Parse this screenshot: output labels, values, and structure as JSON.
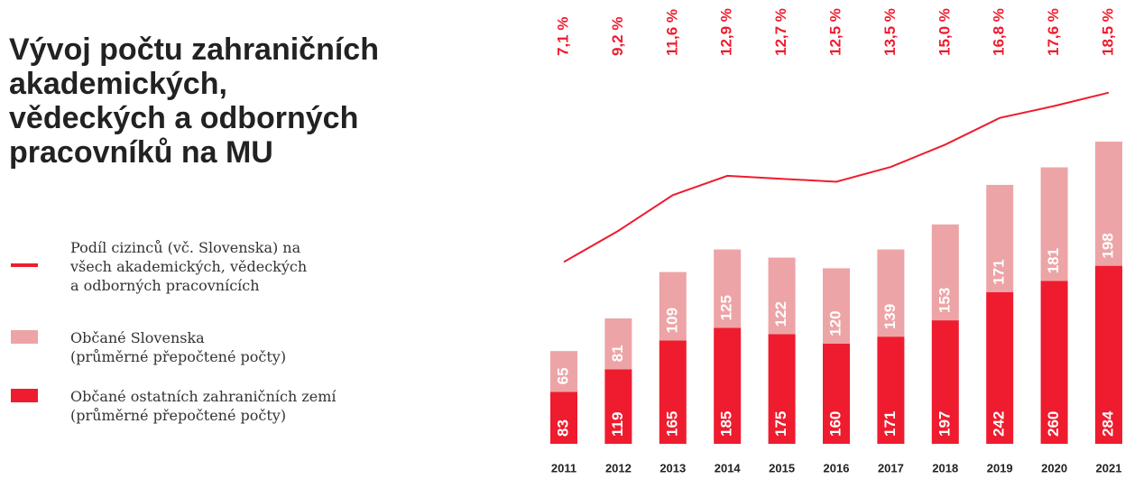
{
  "chart_data": {
    "type": "stacked-bar-line",
    "title": "Vývoj počtu zahraničních\nakademických,\nvědeckých a odborných\npracovníků na MU",
    "categories": [
      "2011",
      "2012",
      "2013",
      "2014",
      "2015",
      "2016",
      "2017",
      "2018",
      "2019",
      "2020",
      "2021"
    ],
    "series": [
      {
        "name": "Občané ostatních zahraničních zemí\n(průměrné přepočtené počty)",
        "color": "#ee1c2e",
        "values": [
          83,
          119,
          165,
          185,
          175,
          160,
          171,
          197,
          242,
          260,
          284
        ]
      },
      {
        "name": "Občané Slovenska\n(průměrné přepočtené počty)",
        "color": "#eda4a6",
        "values": [
          65,
          81,
          109,
          125,
          122,
          120,
          139,
          153,
          171,
          181,
          198
        ]
      },
      {
        "name": "Podíl cizinců (vč. Slovenska) na\nvšech akademických, vědeckých\na odborných pracovnících",
        "color": "#ee1c2e",
        "axis": "y2",
        "values": [
          7.1,
          9.2,
          11.6,
          12.9,
          12.7,
          12.5,
          13.5,
          15.0,
          16.8,
          17.6,
          18.5
        ],
        "value_labels": [
          "7,1 %",
          "9,2 %",
          "11,6 %",
          "12,9 %",
          "12,7 %",
          "12,5 %",
          "13,5 %",
          "15,0 %",
          "16,8 %",
          "17,6 %",
          "18,5 %"
        ]
      }
    ],
    "ylim": [
      0,
      500
    ],
    "y2lim": [
      5,
      20
    ]
  }
}
